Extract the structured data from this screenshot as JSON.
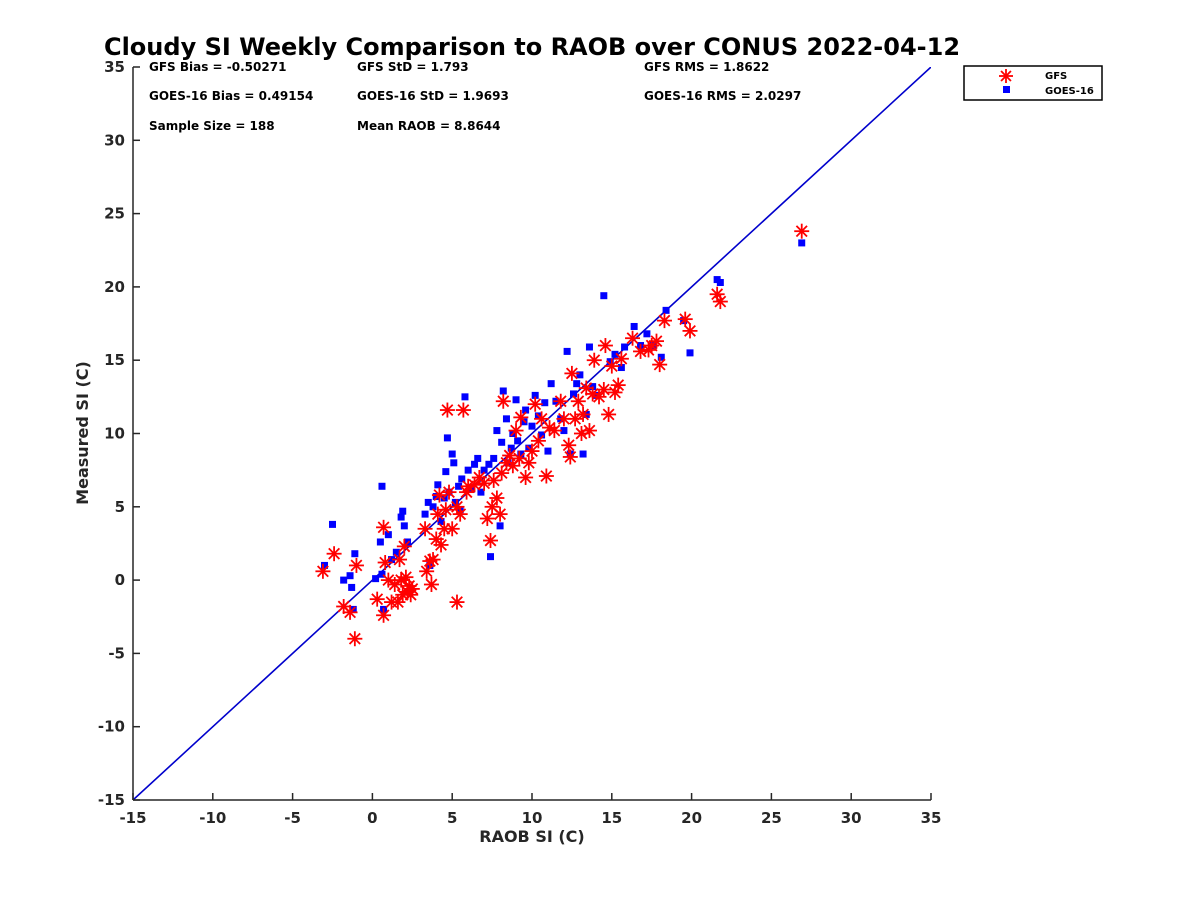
{
  "chart_data": {
    "type": "scatter",
    "title": "Cloudy SI Weekly Comparison to RAOB over CONUS 2022-04-12",
    "xlabel": "RAOB SI (C)",
    "ylabel": "Measured SI (C)",
    "xlim": [
      -15,
      35
    ],
    "ylim": [
      -15,
      35
    ],
    "xticks": [
      -15,
      -10,
      -5,
      0,
      5,
      10,
      15,
      20,
      25,
      30,
      35
    ],
    "yticks": [
      -15,
      -10,
      -5,
      0,
      5,
      10,
      15,
      20,
      25,
      30,
      35
    ],
    "grid": false,
    "legend_position": "top-right",
    "reference_line": {
      "x": [
        -15,
        35
      ],
      "y": [
        -15,
        35
      ],
      "color": "#0000cc"
    },
    "stats": {
      "gfs_bias": "GFS Bias = -0.50271",
      "gfs_std": "GFS StD = 1.793",
      "gfs_rms": "GFS RMS = 1.8622",
      "goes_bias": "GOES-16 Bias = 0.49154",
      "goes_std": "GOES-16 StD = 1.9693",
      "goes_rms": "GOES-16 RMS = 2.0297",
      "sample_size": "Sample Size = 188",
      "mean_raob": "Mean RAOB = 8.8644"
    },
    "series": [
      {
        "name": "GFS",
        "marker": "asterisk",
        "color": "#ff0000",
        "points": [
          [
            -3.1,
            0.6
          ],
          [
            -2.4,
            1.8
          ],
          [
            -1.8,
            -1.8
          ],
          [
            -1.4,
            -2.2
          ],
          [
            -1.1,
            -4.0
          ],
          [
            -1.0,
            1.0
          ],
          [
            0.3,
            -1.3
          ],
          [
            0.7,
            -2.4
          ],
          [
            0.7,
            3.6
          ],
          [
            0.8,
            1.2
          ],
          [
            1.0,
            0.0
          ],
          [
            1.2,
            -1.5
          ],
          [
            1.4,
            -0.3
          ],
          [
            1.6,
            -1.5
          ],
          [
            1.7,
            1.4
          ],
          [
            1.8,
            0.0
          ],
          [
            1.9,
            -1.0
          ],
          [
            2.0,
            2.3
          ],
          [
            2.1,
            0.2
          ],
          [
            2.2,
            -0.8
          ],
          [
            2.3,
            -0.4
          ],
          [
            2.4,
            -1.0
          ],
          [
            2.5,
            -0.6
          ],
          [
            3.3,
            3.5
          ],
          [
            3.4,
            0.6
          ],
          [
            3.6,
            1.3
          ],
          [
            3.7,
            -0.3
          ],
          [
            3.8,
            1.4
          ],
          [
            4.0,
            2.8
          ],
          [
            4.1,
            4.5
          ],
          [
            4.2,
            5.8
          ],
          [
            4.3,
            2.4
          ],
          [
            4.5,
            3.5
          ],
          [
            4.6,
            4.8
          ],
          [
            4.7,
            11.6
          ],
          [
            4.8,
            6.0
          ],
          [
            5.0,
            3.5
          ],
          [
            5.3,
            5.0
          ],
          [
            5.3,
            -1.5
          ],
          [
            5.5,
            4.5
          ],
          [
            5.7,
            11.6
          ],
          [
            5.9,
            6.0
          ],
          [
            6.0,
            6.4
          ],
          [
            6.4,
            6.5
          ],
          [
            6.7,
            7.0
          ],
          [
            7.0,
            6.6
          ],
          [
            7.2,
            4.2
          ],
          [
            7.4,
            2.7
          ],
          [
            7.5,
            5.0
          ],
          [
            7.6,
            6.8
          ],
          [
            7.8,
            5.6
          ],
          [
            8.0,
            4.5
          ],
          [
            8.1,
            7.3
          ],
          [
            8.2,
            12.2
          ],
          [
            8.4,
            8.0
          ],
          [
            8.6,
            8.5
          ],
          [
            8.8,
            7.8
          ],
          [
            9.0,
            10.2
          ],
          [
            9.2,
            8.3
          ],
          [
            9.3,
            11.1
          ],
          [
            9.6,
            7.0
          ],
          [
            9.8,
            8.0
          ],
          [
            10.0,
            8.8
          ],
          [
            10.2,
            12.0
          ],
          [
            10.4,
            9.5
          ],
          [
            10.6,
            11.0
          ],
          [
            10.9,
            7.1
          ],
          [
            11.1,
            10.4
          ],
          [
            11.4,
            10.2
          ],
          [
            11.8,
            12.2
          ],
          [
            12.0,
            11.0
          ],
          [
            12.3,
            9.2
          ],
          [
            12.4,
            8.4
          ],
          [
            12.5,
            14.1
          ],
          [
            12.7,
            11.0
          ],
          [
            12.9,
            12.2
          ],
          [
            13.1,
            10.0
          ],
          [
            13.2,
            11.3
          ],
          [
            13.4,
            13.1
          ],
          [
            13.6,
            10.2
          ],
          [
            13.8,
            12.7
          ],
          [
            13.9,
            15.0
          ],
          [
            14.2,
            12.5
          ],
          [
            14.5,
            13.0
          ],
          [
            14.6,
            16.0
          ],
          [
            14.8,
            11.3
          ],
          [
            15.0,
            14.6
          ],
          [
            15.2,
            12.8
          ],
          [
            15.4,
            13.3
          ],
          [
            15.6,
            15.1
          ],
          [
            16.3,
            16.5
          ],
          [
            16.8,
            15.6
          ],
          [
            17.3,
            15.7
          ],
          [
            17.5,
            16.0
          ],
          [
            17.8,
            16.3
          ],
          [
            18.0,
            14.7
          ],
          [
            18.3,
            17.7
          ],
          [
            19.6,
            17.8
          ],
          [
            19.9,
            17.0
          ],
          [
            21.6,
            19.5
          ],
          [
            21.8,
            19.0
          ],
          [
            26.9,
            23.8
          ]
        ]
      },
      {
        "name": "GOES-16",
        "marker": "square",
        "color": "#0000ff",
        "points": [
          [
            -3.0,
            1.0
          ],
          [
            -2.5,
            3.8
          ],
          [
            -1.8,
            0.0
          ],
          [
            -1.4,
            0.3
          ],
          [
            -1.3,
            -0.5
          ],
          [
            -1.1,
            1.8
          ],
          [
            -1.2,
            -2.0
          ],
          [
            0.2,
            0.1
          ],
          [
            0.5,
            2.6
          ],
          [
            0.6,
            6.4
          ],
          [
            0.6,
            0.4
          ],
          [
            0.7,
            -2.0
          ],
          [
            1.0,
            3.1
          ],
          [
            1.2,
            1.4
          ],
          [
            1.5,
            1.9
          ],
          [
            1.8,
            4.3
          ],
          [
            1.9,
            4.7
          ],
          [
            2.0,
            3.7
          ],
          [
            2.2,
            2.6
          ],
          [
            3.3,
            4.5
          ],
          [
            3.5,
            5.3
          ],
          [
            3.6,
            1.0
          ],
          [
            3.8,
            5.0
          ],
          [
            4.0,
            5.7
          ],
          [
            4.1,
            6.5
          ],
          [
            4.3,
            4.0
          ],
          [
            4.5,
            5.6
          ],
          [
            4.6,
            7.4
          ],
          [
            4.7,
            9.7
          ],
          [
            4.8,
            6.0
          ],
          [
            5.0,
            8.6
          ],
          [
            5.1,
            8.0
          ],
          [
            5.2,
            5.3
          ],
          [
            5.4,
            6.4
          ],
          [
            5.5,
            4.8
          ],
          [
            5.6,
            6.9
          ],
          [
            5.8,
            12.5
          ],
          [
            6.0,
            7.5
          ],
          [
            6.2,
            6.2
          ],
          [
            6.4,
            7.9
          ],
          [
            6.6,
            8.3
          ],
          [
            6.8,
            6.0
          ],
          [
            7.0,
            7.5
          ],
          [
            7.3,
            7.9
          ],
          [
            7.4,
            1.6
          ],
          [
            7.6,
            8.3
          ],
          [
            7.8,
            10.2
          ],
          [
            8.0,
            3.7
          ],
          [
            8.1,
            9.4
          ],
          [
            8.2,
            12.9
          ],
          [
            8.4,
            11.0
          ],
          [
            8.5,
            8.0
          ],
          [
            8.7,
            9.0
          ],
          [
            8.8,
            10.0
          ],
          [
            9.0,
            12.3
          ],
          [
            9.1,
            9.5
          ],
          [
            9.3,
            8.6
          ],
          [
            9.5,
            10.8
          ],
          [
            9.6,
            11.6
          ],
          [
            9.8,
            9.0
          ],
          [
            10.0,
            10.5
          ],
          [
            10.2,
            12.6
          ],
          [
            10.4,
            11.2
          ],
          [
            10.6,
            9.9
          ],
          [
            10.8,
            12.1
          ],
          [
            11.0,
            8.8
          ],
          [
            11.2,
            13.4
          ],
          [
            11.5,
            12.2
          ],
          [
            11.8,
            11.0
          ],
          [
            12.0,
            10.2
          ],
          [
            12.2,
            15.6
          ],
          [
            12.4,
            8.6
          ],
          [
            12.6,
            12.7
          ],
          [
            12.8,
            13.4
          ],
          [
            13.0,
            14.0
          ],
          [
            13.2,
            8.6
          ],
          [
            13.4,
            11.3
          ],
          [
            13.6,
            15.9
          ],
          [
            13.8,
            13.2
          ],
          [
            14.0,
            12.6
          ],
          [
            14.5,
            19.4
          ],
          [
            14.9,
            14.9
          ],
          [
            15.2,
            15.4
          ],
          [
            15.6,
            14.5
          ],
          [
            15.8,
            15.9
          ],
          [
            16.4,
            17.3
          ],
          [
            16.8,
            16.0
          ],
          [
            17.2,
            16.8
          ],
          [
            17.6,
            16.0
          ],
          [
            18.1,
            15.2
          ],
          [
            18.4,
            18.4
          ],
          [
            19.5,
            17.7
          ],
          [
            19.9,
            15.5
          ],
          [
            21.6,
            20.5
          ],
          [
            21.8,
            20.3
          ],
          [
            26.9,
            23.0
          ]
        ]
      }
    ]
  }
}
